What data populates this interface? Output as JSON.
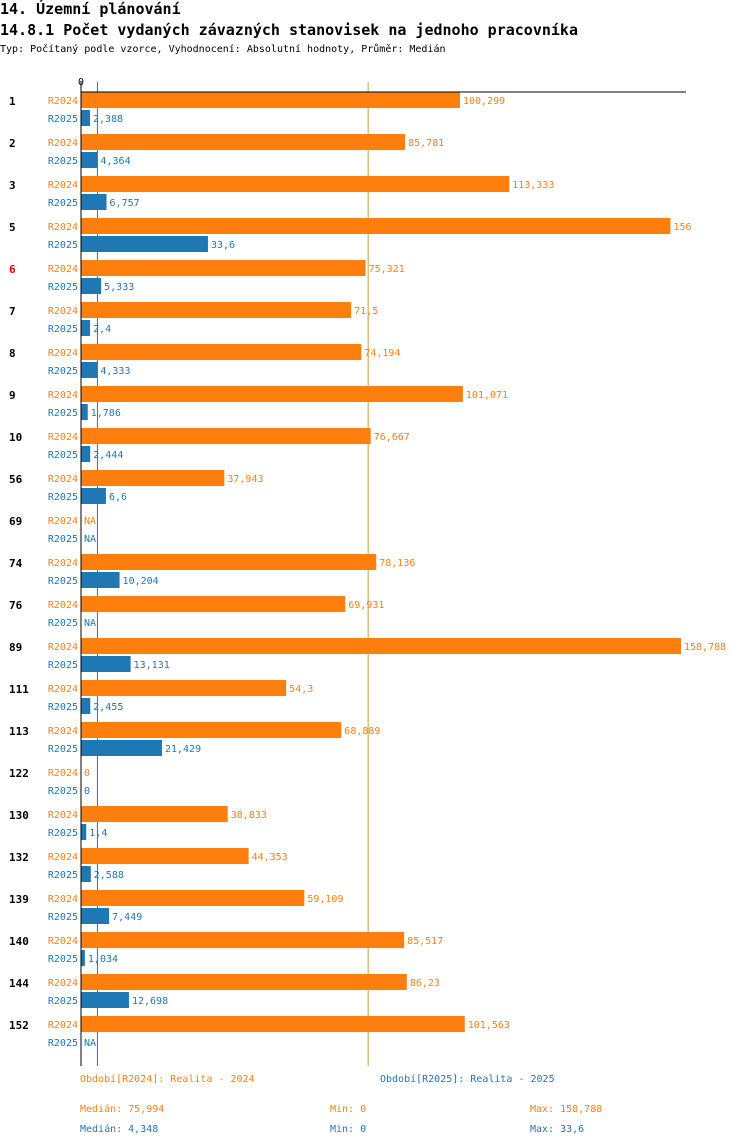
{
  "section_title": "14. Územní plánování",
  "chart_title": "14.8.1 Počet vydaných závazných stanovisek na jednoho pracovníka",
  "subtitle": "Typ: Počítaný podle vzorce, Vyhodnocení: Absolutní hodnoty, Průměr: Medián",
  "colors": {
    "r2024": "#ff7f0e",
    "r2025": "#1f77b4",
    "median_line": "#c8a040",
    "highlight": "#e00000",
    "axis": "#000000"
  },
  "chart_data": {
    "type": "bar",
    "orientation": "horizontal",
    "x_axis_label": "0",
    "xlim": [
      0,
      158.788
    ],
    "median_reference": 75.994,
    "highlighted_category": "6",
    "categories": [
      "1",
      "2",
      "3",
      "5",
      "6",
      "7",
      "8",
      "9",
      "10",
      "56",
      "69",
      "74",
      "76",
      "89",
      "111",
      "113",
      "122",
      "130",
      "132",
      "139",
      "140",
      "144",
      "152"
    ],
    "series": [
      {
        "name": "R2024",
        "values": [
          100.299,
          85.781,
          113.333,
          156,
          75.321,
          71.5,
          74.194,
          101.071,
          76.667,
          37.943,
          null,
          78.136,
          69.931,
          158.788,
          54.3,
          68.889,
          0,
          38.833,
          44.353,
          59.109,
          85.517,
          86.23,
          101.563
        ],
        "labels": [
          "100,299",
          "85,781",
          "113,333",
          "156",
          "75,321",
          "71,5",
          "74,194",
          "101,071",
          "76,667",
          "37,943",
          "NA",
          "78,136",
          "69,931",
          "158,788",
          "54,3",
          "68,889",
          "0",
          "38,833",
          "44,353",
          "59,109",
          "85,517",
          "86,23",
          "101,563"
        ]
      },
      {
        "name": "R2025",
        "values": [
          2.388,
          4.364,
          6.757,
          33.6,
          5.333,
          2.4,
          4.333,
          1.786,
          2.444,
          6.6,
          null,
          10.204,
          null,
          13.131,
          2.455,
          21.429,
          0,
          1.4,
          2.588,
          7.449,
          1.034,
          12.698,
          null
        ],
        "labels": [
          "2,388",
          "4,364",
          "6,757",
          "33,6",
          "5,333",
          "2,4",
          "4,333",
          "1,786",
          "2,444",
          "6,6",
          "NA",
          "10,204",
          "NA",
          "13,131",
          "2,455",
          "21,429",
          "0",
          "1,4",
          "2,588",
          "7,449",
          "1,034",
          "12,698",
          "NA"
        ]
      }
    ]
  },
  "legend": {
    "r2024": "Období[R2024]: Realita - 2024",
    "r2025": "Období[R2025]: Realita - 2025"
  },
  "stats": {
    "r2024": {
      "median": "Medián: 75,994",
      "min": "Min: 0",
      "max": "Max: 158,788"
    },
    "r2025": {
      "median": "Medián: 4,348",
      "min": "Min: 0",
      "max": "Max: 33,6"
    }
  }
}
